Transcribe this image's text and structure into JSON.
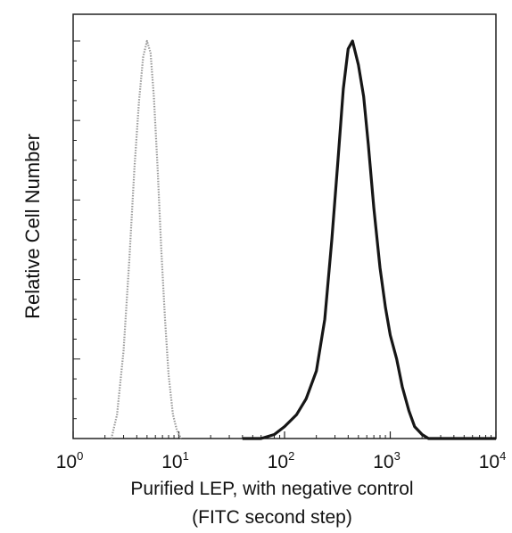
{
  "chart_data": {
    "type": "line",
    "title": "",
    "xlabel": [
      "Purified LEP, with negative control",
      "(FITC second step)"
    ],
    "ylabel": "Relative Cell Number",
    "x_scale": "log",
    "xlim": [
      1,
      10000
    ],
    "ylim": [
      0,
      1.0
    ],
    "x_ticks": [
      {
        "base": "10",
        "exp": "0"
      },
      {
        "base": "10",
        "exp": "1"
      },
      {
        "base": "10",
        "exp": "2"
      },
      {
        "base": "10",
        "exp": "3"
      },
      {
        "base": "10",
        "exp": "4"
      }
    ],
    "y_tick_labels_shown": false,
    "grid": false,
    "legend": "none",
    "series": [
      {
        "style": "dotted-light",
        "color": "#9a9a9a",
        "x": [
          2.3,
          2.6,
          3.0,
          3.4,
          3.8,
          4.2,
          4.6,
          5.0,
          5.4,
          5.8,
          6.3,
          6.8,
          7.4,
          8.0,
          8.8,
          9.6,
          10.5
        ],
        "y": [
          0.0,
          0.06,
          0.22,
          0.45,
          0.68,
          0.85,
          0.96,
          1.0,
          0.97,
          0.86,
          0.68,
          0.48,
          0.3,
          0.16,
          0.06,
          0.02,
          0.0
        ]
      },
      {
        "style": "solid-dark",
        "color": "#161616",
        "x": [
          40,
          60,
          80,
          100,
          130,
          160,
          200,
          240,
          280,
          320,
          360,
          400,
          440,
          500,
          560,
          620,
          700,
          800,
          900,
          1000,
          1150,
          1300,
          1500,
          1700,
          2000,
          2300,
          2800,
          4000,
          10000
        ],
        "y": [
          0.0,
          0.0,
          0.01,
          0.03,
          0.06,
          0.1,
          0.17,
          0.3,
          0.5,
          0.7,
          0.88,
          0.98,
          1.0,
          0.94,
          0.86,
          0.74,
          0.58,
          0.43,
          0.33,
          0.26,
          0.2,
          0.13,
          0.07,
          0.03,
          0.01,
          0.0,
          0.0,
          0.0,
          0.0
        ]
      }
    ]
  }
}
